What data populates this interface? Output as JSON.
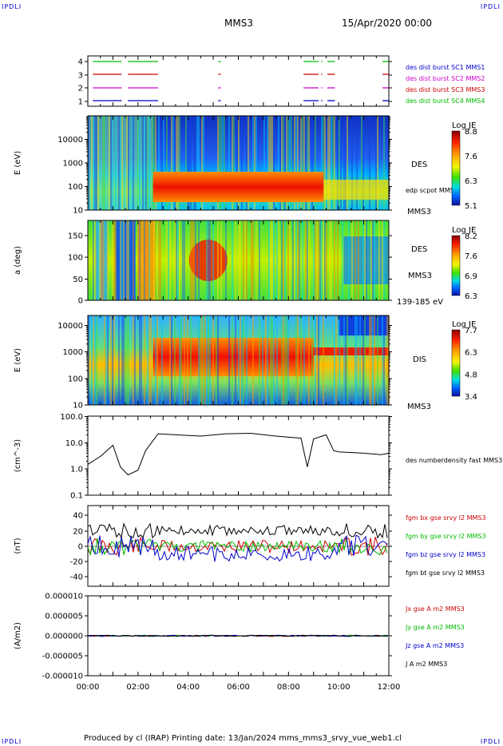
{
  "corner_labels": {
    "top_left": "IPDLI",
    "top_right": "IPDLI",
    "bottom_left": "IPDLI",
    "bottom_right": "IPDLI"
  },
  "header": {
    "spacecraft": "MMS3",
    "date": "15/Apr/2020 00:00"
  },
  "footer": "Produced by cl (IRAP)   Printing date: 13/Jan/2024   mms_mms3_srvy_vue_web1.cl",
  "colors": {
    "mms1": "#0000cc",
    "mms2": "#cc00cc",
    "mms3": "#cc0000",
    "mms4": "#00bb00",
    "black": "#000000"
  },
  "chart_data": [
    {
      "type": "line",
      "name": "burst-availability",
      "yticks": [
        "1",
        "2",
        "3",
        "4"
      ],
      "legend": [
        {
          "label": "des dist burst SC1 MMS1",
          "color": "#0000cc"
        },
        {
          "label": "des dist burst SC2 MMS2",
          "color": "#cc00cc"
        },
        {
          "label": "des dist burst SC3 MMS3",
          "color": "#cc0000"
        },
        {
          "label": "des dist burst SC4 MMS4",
          "color": "#00bb00"
        }
      ],
      "intervals_hours": [
        [
          0.2,
          1.35
        ],
        [
          1.6,
          2.8
        ],
        [
          5.2,
          5.3
        ],
        [
          8.6,
          9.2
        ],
        [
          9.3,
          9.35
        ],
        [
          9.55,
          9.85
        ],
        [
          11.75,
          12.0
        ]
      ]
    },
    {
      "type": "heatmap",
      "name": "des-energy-spectrogram",
      "ylabel": "E (eV)",
      "ytick_labels": [
        "10",
        "100",
        "1000",
        "10000"
      ],
      "right_labels": [
        "DES",
        "edp scpot MMS3",
        "MMS3"
      ],
      "colorbar": {
        "title": "Log JE",
        "ticks": [
          "8.8",
          "7.6",
          "6.3",
          "5.1"
        ]
      }
    },
    {
      "type": "heatmap",
      "name": "des-pitch-angle",
      "ylabel": "a (deg)",
      "ytick_labels": [
        "0",
        "50",
        "100",
        "150"
      ],
      "right_labels": [
        "DES",
        "MMS3",
        "139-185 eV"
      ],
      "colorbar": {
        "title": "Log JE",
        "ticks": [
          "8.2",
          "7.6",
          "6.9",
          "6.3"
        ]
      }
    },
    {
      "type": "heatmap",
      "name": "dis-energy-spectrogram",
      "ylabel": "E (eV)",
      "ytick_labels": [
        "10",
        "100",
        "1000",
        "10000"
      ],
      "right_labels": [
        "DIS",
        "MMS3"
      ],
      "colorbar": {
        "title": "Log JE",
        "ticks": [
          "7.7",
          "6.3",
          "4.8",
          "3.4"
        ]
      }
    },
    {
      "type": "line",
      "name": "electron-density",
      "ylabel": "(cm^-3)",
      "ytick_labels": [
        "0.1",
        "1.0",
        "10.0",
        "100.0"
      ],
      "series": [
        {
          "name": "des numberdensity fast MMS3",
          "color": "#000000"
        }
      ],
      "x_hours": [
        0,
        0.5,
        1,
        1.3,
        1.6,
        2.0,
        2.3,
        2.6,
        2.8,
        3.5,
        4.5,
        5.5,
        6.5,
        7.5,
        8.5,
        8.75,
        9.0,
        9.5,
        9.8,
        10.0,
        11.0,
        11.7,
        12.0
      ],
      "values": [
        1.5,
        3,
        8,
        1.2,
        0.6,
        0.9,
        5,
        12,
        22,
        20,
        18,
        22,
        23,
        18,
        15,
        1.2,
        14,
        20,
        5,
        4.5,
        4,
        3.5,
        4
      ]
    },
    {
      "type": "line",
      "name": "magnetic-field",
      "ylabel": "(nT)",
      "ytick_labels": [
        "-40",
        "-20",
        "0",
        "20",
        "40"
      ],
      "ylim": [
        -50,
        50
      ],
      "series": [
        {
          "name": "fgm bx gse srvy l2 MMS3",
          "color": "#cc0000"
        },
        {
          "name": "fgm by gse srvy l2 MMS3",
          "color": "#00bb00"
        },
        {
          "name": "fgm bz gse srvy l2 MMS3",
          "color": "#0000cc"
        },
        {
          "name": "fgm bt gse srvy l2 MMS3",
          "color": "#000000"
        }
      ]
    },
    {
      "type": "line",
      "name": "current-density",
      "ylabel": "(A/m2)",
      "ytick_labels": [
        "-0.000010",
        "-0.000005",
        "0.000000",
        "0.000005",
        "0.000010"
      ],
      "xtick_labels": [
        "00:00",
        "02:00",
        "04:00",
        "06:00",
        "08:00",
        "10:00",
        "12:00"
      ],
      "series": [
        {
          "name": "Jx gse A m2 MMS3",
          "color": "#cc0000"
        },
        {
          "name": "Jy gse A m2 MMS3",
          "color": "#00bb00"
        },
        {
          "name": "Jz gse A m2 MMS3",
          "color": "#0000cc"
        },
        {
          "name": "J A m2 MMS3",
          "color": "#000000"
        }
      ]
    }
  ]
}
